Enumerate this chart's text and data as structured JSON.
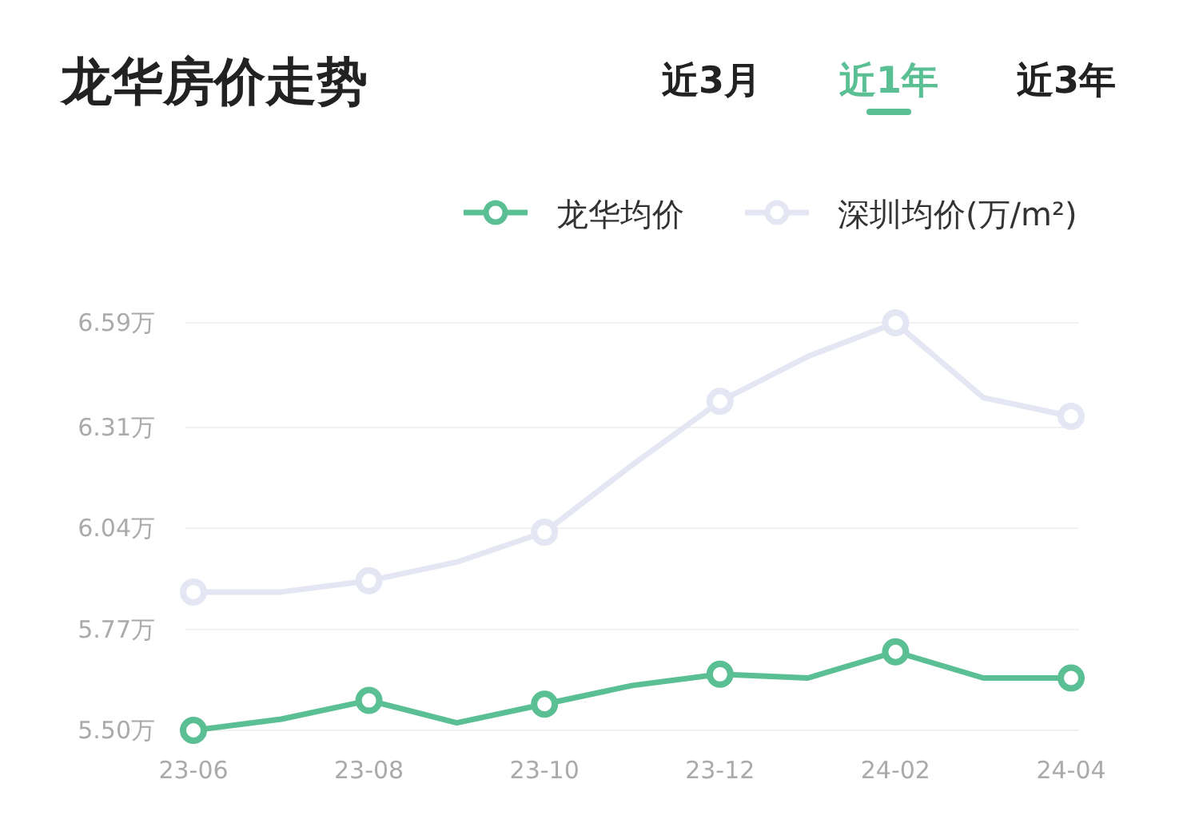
{
  "chart_data": {
    "type": "line",
    "title": "龙华房价走势",
    "annotations": [
      "近3月",
      "近1年",
      "近3年"
    ],
    "categories": [
      "23-06",
      null,
      "23-08",
      null,
      "23-10",
      null,
      "23-12",
      null,
      "24-02",
      null,
      "24-04"
    ],
    "series": [
      {
        "name": "龙华均价",
        "color": "#5bbf94",
        "values": [
          5.5,
          5.53,
          5.58,
          5.52,
          5.57,
          5.62,
          5.65,
          5.64,
          5.71,
          5.64,
          5.64
        ]
      },
      {
        "name": "深圳均价(万/m²)",
        "color": "#e4e6f4",
        "values": [
          5.87,
          5.87,
          5.9,
          5.95,
          6.03,
          6.21,
          6.38,
          6.5,
          6.59,
          6.39,
          6.34
        ]
      }
    ],
    "ylim": [
      5.5,
      6.59
    ],
    "yticks": [
      {
        "value": 6.59,
        "label": "6.59万"
      },
      {
        "value": 6.31,
        "label": "6.31万"
      },
      {
        "value": 6.04,
        "label": "6.04万"
      },
      {
        "value": 5.77,
        "label": "5.77万"
      },
      {
        "value": 5.5,
        "label": "5.50万"
      }
    ],
    "grid": "y",
    "legend": "top right",
    "marker": "circle",
    "line_style": "solid"
  }
}
